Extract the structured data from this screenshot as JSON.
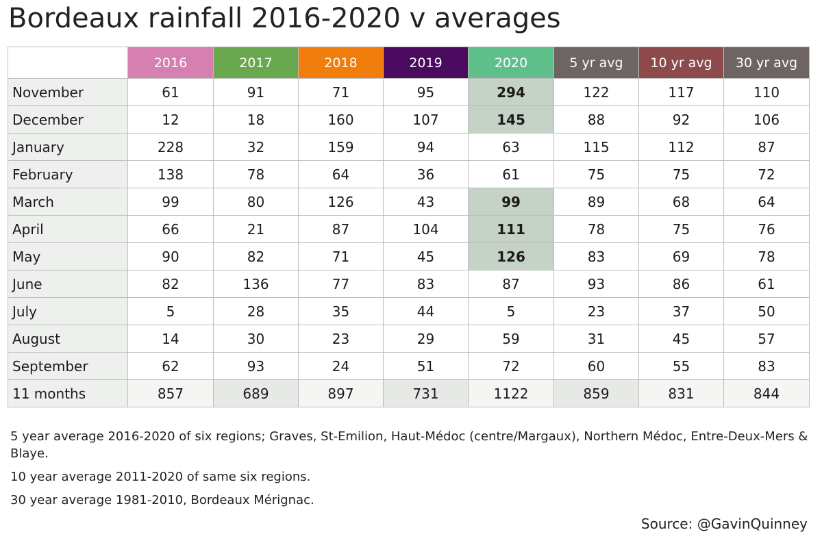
{
  "title": "Bordeaux rainfall 2016-2020 v averages",
  "chart_data": {
    "type": "table",
    "title": "Bordeaux rainfall 2016-2020 v averages",
    "columns": [
      {
        "label": "2016",
        "color": "#d67fb1"
      },
      {
        "label": "2017",
        "color": "#6aa84f"
      },
      {
        "label": "2018",
        "color": "#f07d0c"
      },
      {
        "label": "2019",
        "color": "#4a0a5e"
      },
      {
        "label": "2020",
        "color": "#5fbf8a"
      },
      {
        "label": "5 yr avg",
        "color": "#6e6464"
      },
      {
        "label": "10 yr avg",
        "color": "#8c4a4a"
      },
      {
        "label": "30 yr avg",
        "color": "#6e6464"
      }
    ],
    "rows": [
      {
        "month": "November",
        "values": [
          "61",
          "91",
          "71",
          "95",
          "294",
          "122",
          "117",
          "110"
        ],
        "highlight_2020": true
      },
      {
        "month": "December",
        "values": [
          "12",
          "18",
          "160",
          "107",
          "145",
          "88",
          "92",
          "106"
        ],
        "highlight_2020": true
      },
      {
        "month": "January",
        "values": [
          "228",
          "32",
          "159",
          "94",
          "63",
          "115",
          "112",
          "87"
        ],
        "highlight_2020": false
      },
      {
        "month": "February",
        "values": [
          "138",
          "78",
          "64",
          "36",
          "61",
          "75",
          "75",
          "72"
        ],
        "highlight_2020": false
      },
      {
        "month": "March",
        "values": [
          "99",
          "80",
          "126",
          "43",
          "99",
          "89",
          "68",
          "64"
        ],
        "highlight_2020": true
      },
      {
        "month": "April",
        "values": [
          "66",
          "21",
          "87",
          "104",
          "111",
          "78",
          "75",
          "76"
        ],
        "highlight_2020": true
      },
      {
        "month": "May",
        "values": [
          "90",
          "82",
          "71",
          "45",
          "126",
          "83",
          "69",
          "78"
        ],
        "highlight_2020": true
      },
      {
        "month": "June",
        "values": [
          "82",
          "136",
          "77",
          "83",
          "87",
          "93",
          "86",
          "61"
        ],
        "highlight_2020": false
      },
      {
        "month": "July",
        "values": [
          "5",
          "28",
          "35",
          "44",
          "5",
          "23",
          "37",
          "50"
        ],
        "highlight_2020": false
      },
      {
        "month": "August",
        "values": [
          "14",
          "30",
          "23",
          "29",
          "59",
          "31",
          "45",
          "57"
        ],
        "highlight_2020": false
      },
      {
        "month": "September",
        "values": [
          "62",
          "93",
          "24",
          "51",
          "72",
          "60",
          "55",
          "83"
        ],
        "highlight_2020": false
      }
    ],
    "total": {
      "month": "11 months",
      "values": [
        "857",
        "689",
        "897",
        "731",
        "1122",
        "859",
        "831",
        "844"
      ]
    }
  },
  "notes": [
    "5 year average 2016-2020 of six regions; Graves, St-Emilion, Haut-Médoc (centre/Margaux), Northern Médoc, Entre-Deux-Mers & Blaye.",
    "10 year average 2011-2020 of same six regions.",
    "30 year average 1981-2010, Bordeaux Mérignac."
  ],
  "source": "Source: @GavinQuinney"
}
